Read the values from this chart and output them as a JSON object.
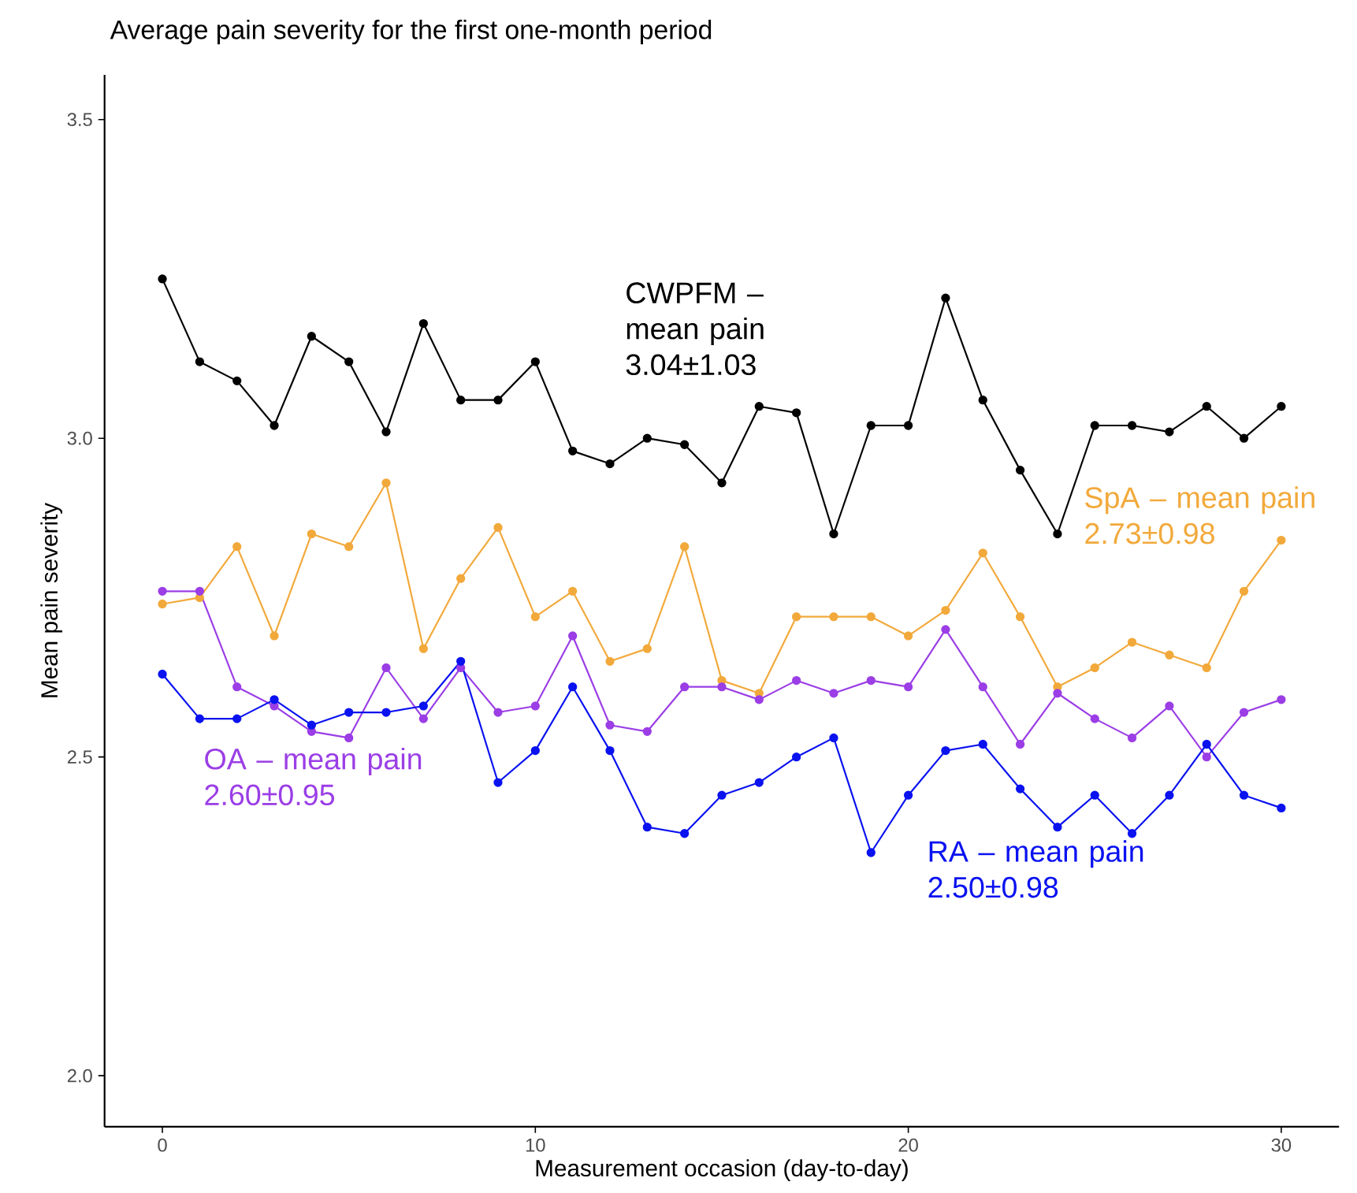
{
  "chart_data": {
    "type": "line",
    "title": "Average pain severity for the first one-month period",
    "xlabel": "Measurement occasion (day-to-day)",
    "ylabel": "Mean pain severity",
    "x": [
      0,
      1,
      2,
      3,
      4,
      5,
      6,
      7,
      8,
      9,
      10,
      11,
      12,
      13,
      14,
      15,
      16,
      17,
      18,
      19,
      20,
      21,
      22,
      23,
      24,
      25,
      26,
      27,
      28,
      29,
      30
    ],
    "series": [
      {
        "name": "CWPFM – mean pain 3.04±1.03",
        "color": "#000000",
        "values": [
          3.25,
          3.12,
          3.09,
          3.02,
          3.16,
          3.12,
          3.01,
          3.18,
          3.06,
          3.06,
          3.12,
          2.98,
          2.96,
          3.0,
          2.99,
          2.93,
          3.05,
          3.04,
          2.85,
          3.02,
          3.02,
          3.22,
          3.06,
          2.95,
          2.85,
          3.02,
          3.02,
          3.01,
          3.05,
          3.0,
          3.05
        ]
      },
      {
        "name": "SpA – mean pain 2.73±0.98",
        "color": "#f2a93b",
        "values": [
          2.74,
          2.75,
          2.83,
          2.69,
          2.85,
          2.83,
          2.93,
          2.67,
          2.78,
          2.86,
          2.72,
          2.76,
          2.65,
          2.67,
          2.83,
          2.62,
          2.6,
          2.72,
          2.72,
          2.72,
          2.69,
          2.73,
          2.82,
          2.72,
          2.61,
          2.64,
          2.68,
          2.66,
          2.64,
          2.76,
          2.84
        ]
      },
      {
        "name": "OA – mean pain 2.60±0.95",
        "color": "#9b3ee6",
        "values": [
          2.76,
          2.76,
          2.61,
          2.58,
          2.54,
          2.53,
          2.64,
          2.56,
          2.64,
          2.57,
          2.58,
          2.69,
          2.55,
          2.54,
          2.61,
          2.61,
          2.59,
          2.62,
          2.6,
          2.62,
          2.61,
          2.7,
          2.61,
          2.52,
          2.6,
          2.56,
          2.53,
          2.58,
          2.5,
          2.57,
          2.59
        ]
      },
      {
        "name": "RA – mean pain 2.50±0.98",
        "color": "#0a12f0",
        "values": [
          2.63,
          2.56,
          2.56,
          2.59,
          2.55,
          2.57,
          2.57,
          2.58,
          2.65,
          2.46,
          2.51,
          2.61,
          2.51,
          2.39,
          2.38,
          2.44,
          2.46,
          2.5,
          2.53,
          2.35,
          2.44,
          2.51,
          2.52,
          2.45,
          2.39,
          2.44,
          2.38,
          2.44,
          2.52,
          2.44,
          2.42
        ]
      }
    ],
    "xlim": [
      -1.55,
      31.55
    ],
    "ylim": [
      1.92,
      3.57
    ],
    "xticks": [
      0,
      10,
      20,
      30
    ],
    "yticks": [
      {
        "value": 2.0,
        "label": "2.0"
      },
      {
        "value": 2.5,
        "label": "2.5"
      },
      {
        "value": 3.0,
        "label": "3.0"
      },
      {
        "value": 3.5,
        "label": "3.5"
      }
    ],
    "grid": false,
    "marker": "circle",
    "line_style": "solid"
  }
}
